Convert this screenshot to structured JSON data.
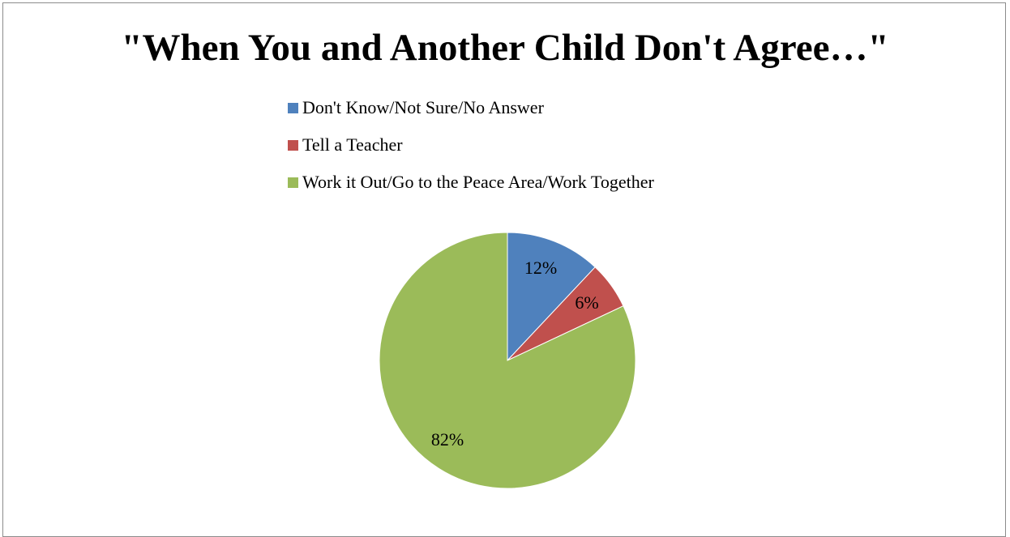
{
  "chart_data": {
    "type": "pie",
    "title": "\"When You and Another Child Don't Agree…\"",
    "legend_position": "top",
    "series": [
      {
        "name": "Don't Know/Not Sure/No Answer",
        "value": 12,
        "label": "12%",
        "color": "#4F81BD"
      },
      {
        "name": "Tell a Teacher",
        "value": 6,
        "label": "6%",
        "color": "#C0504D"
      },
      {
        "name": "Work it Out/Go to the Peace Area/Work Together",
        "value": 82,
        "label": "82%",
        "color": "#9BBB59"
      }
    ]
  }
}
